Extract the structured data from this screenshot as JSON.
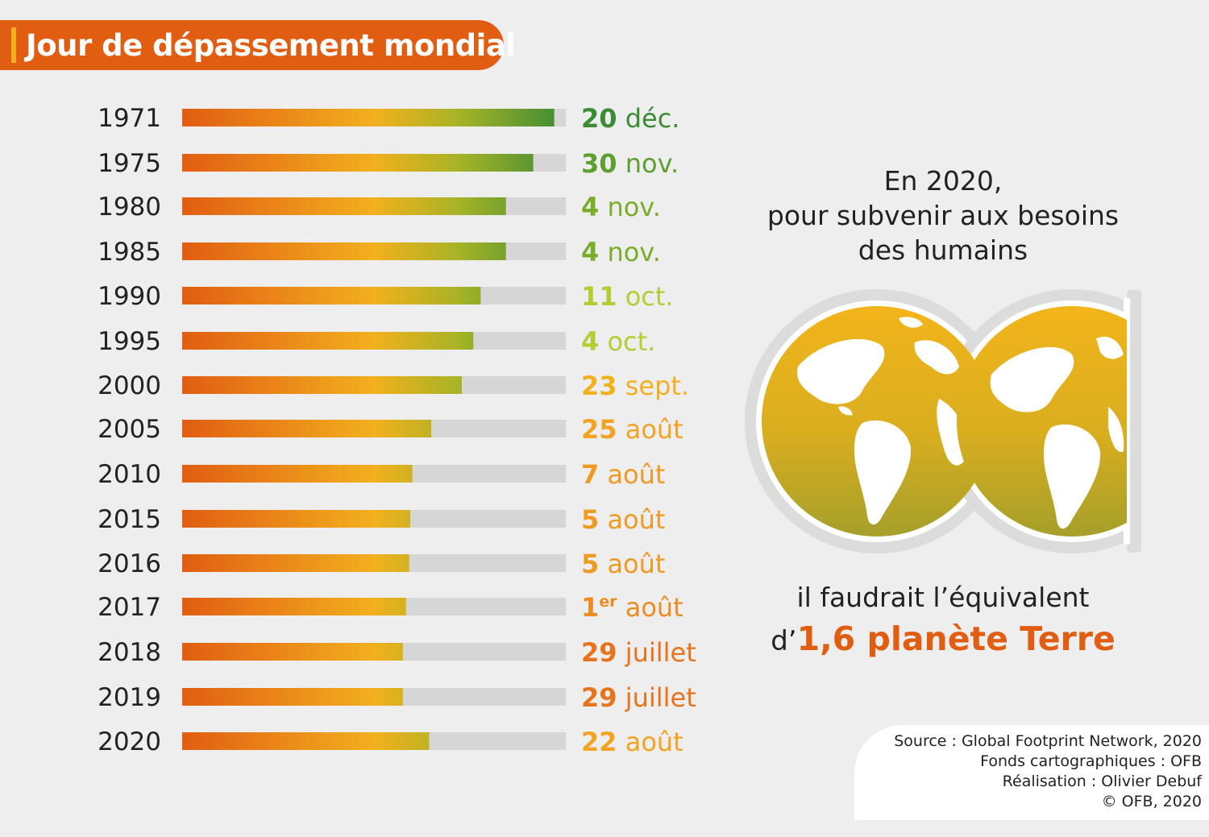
{
  "title": "Jour de dépassement mondial",
  "chart_data": {
    "type": "bar",
    "orientation": "horizontal",
    "categories": [
      "1971",
      "1975",
      "1980",
      "1985",
      "1990",
      "1995",
      "2000",
      "2005",
      "2010",
      "2015",
      "2016",
      "2017",
      "2018",
      "2019",
      "2020"
    ],
    "values": [
      354,
      334,
      308,
      308,
      284,
      277,
      266,
      237,
      219,
      217,
      216,
      213,
      210,
      210,
      235
    ],
    "value_unit": "jour de l'année",
    "xlim": [
      0,
      365
    ],
    "value_labels": [
      {
        "main": "20 déc."
      },
      {
        "main": "30 nov."
      },
      {
        "main": "4 nov."
      },
      {
        "main": "4 nov."
      },
      {
        "main": "11 oct."
      },
      {
        "main": "4 oct."
      },
      {
        "main": "23 sept."
      },
      {
        "main": "25 août"
      },
      {
        "main": "7 août"
      },
      {
        "main": "5 août"
      },
      {
        "main": "5 août"
      },
      {
        "pre": "1",
        "sup": "er",
        "post": " août"
      },
      {
        "main": "29 juillet"
      },
      {
        "main": "29 juillet"
      },
      {
        "main": "22 août"
      }
    ],
    "label_colors": [
      "#3b8b35",
      "#5e9f2f",
      "#7aad2b",
      "#7aad2b",
      "#b6cc33",
      "#b6cc33",
      "#f2b01e",
      "#f2a321",
      "#ef9a22",
      "#ef9a22",
      "#ef9a22",
      "#ec8c22",
      "#e8731d",
      "#e8731d",
      "#f2a321"
    ],
    "grid": false,
    "legend": "none"
  },
  "colors": {
    "orange": "#e15d12",
    "yellow": "#f2b01e",
    "green": "#3b8b35",
    "track": "#d6d6d6",
    "globe_light": "#f0b41c",
    "globe_dark": "#a8a227"
  },
  "info": {
    "line1": "En 2020,",
    "line2": "pour subvenir aux besoins",
    "line3": "des humains",
    "line4": "il faudrait l’équivalent",
    "line5_prefix": "d’",
    "line5_highlight": "1,6 planète Terre"
  },
  "credits": {
    "line1": "Source : Global Footprint Network, 2020",
    "line2": "Fonds cartographiques : OFB",
    "line3": "Réalisation : Olivier Debuf",
    "line4": "© OFB, 2020"
  },
  "icons": [
    "globe-icon",
    "globe-partial-icon"
  ]
}
